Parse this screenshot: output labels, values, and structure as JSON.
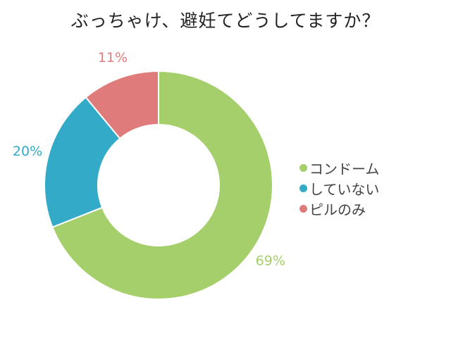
{
  "chart_data": {
    "type": "pie",
    "title": "ぶっちゃけ、避妊てどうしてますか？",
    "donut": true,
    "legend_position": "right",
    "slices": [
      {
        "label": "コンドーム",
        "value": 69,
        "display": "69%",
        "color": "#a5cf6b"
      },
      {
        "label": "していない",
        "value": 20,
        "display": "20%",
        "color": "#33aac8"
      },
      {
        "label": "ピルのみ",
        "value": 11,
        "display": "11%",
        "color": "#e07b7b"
      }
    ]
  }
}
